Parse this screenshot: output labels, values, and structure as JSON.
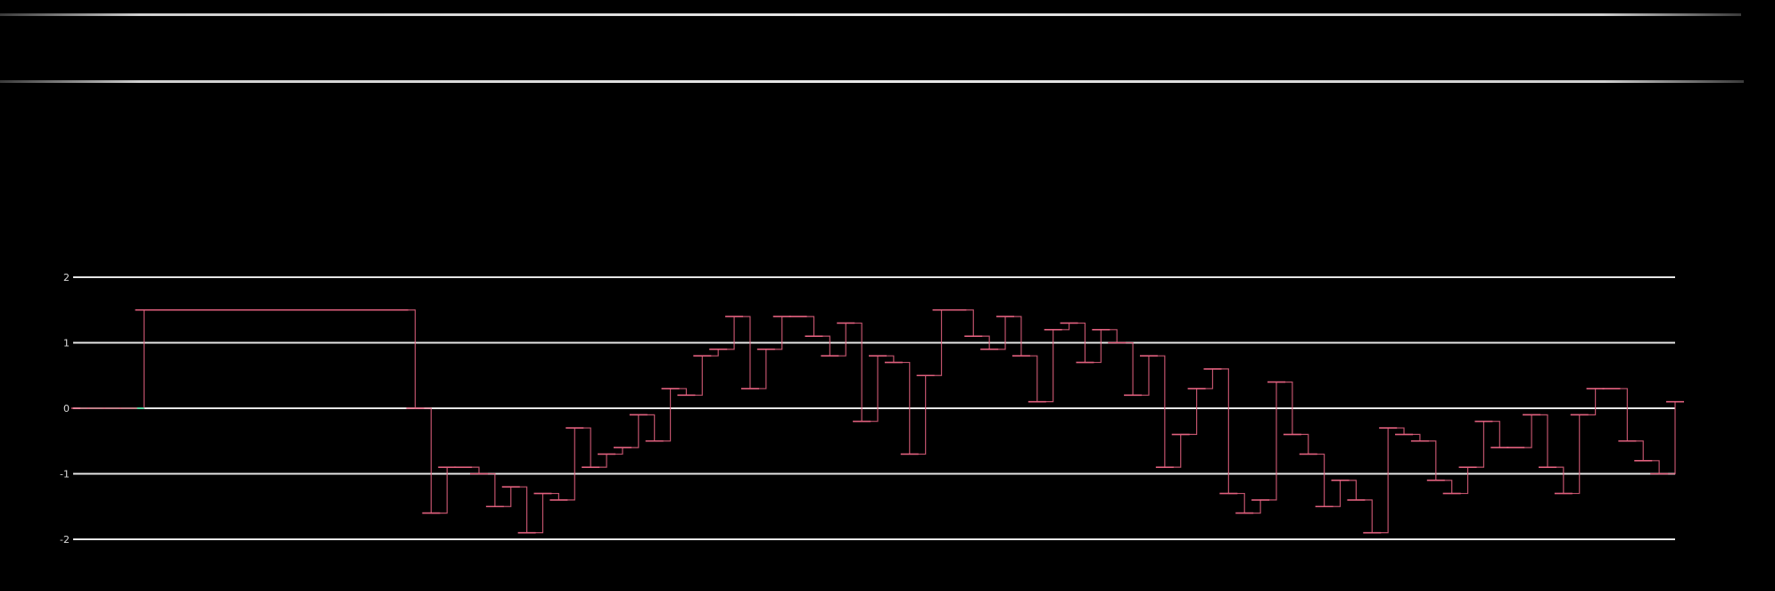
{
  "page": {
    "title": "",
    "chart_heading": ""
  },
  "colors": {
    "background": "#000000",
    "grid": "#e6e6e6",
    "series_main": "#e0607e",
    "series_accent": "#55d6a0"
  },
  "chart_data": {
    "type": "line",
    "title": "",
    "xlabel": "",
    "ylabel": "",
    "ylim": [
      -2,
      2
    ],
    "yticks": [
      2,
      1,
      0,
      -1,
      -2
    ],
    "grid": true,
    "legend": "none",
    "x": [
      0,
      4,
      8,
      12,
      16,
      20,
      24,
      28,
      32,
      36,
      40,
      44,
      48,
      52,
      56,
      60,
      64,
      68,
      72,
      76,
      80,
      84,
      88,
      92,
      96,
      100,
      104,
      108,
      112,
      116,
      120,
      124,
      128,
      132,
      136,
      140,
      144,
      148,
      152,
      156,
      160,
      164,
      168,
      172,
      176,
      180,
      184,
      188,
      192,
      196,
      200,
      204,
      208,
      212,
      216,
      220,
      224,
      228,
      232,
      236,
      240,
      244,
      248,
      252,
      256,
      260,
      264,
      268,
      272,
      276,
      280,
      284,
      288,
      292,
      296,
      300,
      304,
      308,
      312,
      316,
      320,
      324,
      328,
      332,
      336,
      340,
      344,
      348,
      352,
      356,
      360,
      364,
      368,
      372,
      376,
      380,
      384,
      388,
      392,
      396,
      400
    ],
    "series": [
      {
        "values": [
          0,
          0,
          0,
          0,
          1.5,
          1.5,
          1.5,
          1.5,
          1.5,
          1.5,
          1.5,
          1.5,
          1.5,
          1.5,
          1.5,
          1.5,
          1.5,
          1.5,
          1.5,
          1.5,
          1.5,
          0,
          -1.6,
          -0.9,
          -0.9,
          -1,
          -1.5,
          -1.2,
          -1.9,
          -1.3,
          -1.4,
          -0.3,
          -0.9,
          -0.7,
          -0.6,
          -0.1,
          -0.5,
          0.3,
          0.2,
          0.8,
          0.9,
          1.4,
          0.3,
          0.9,
          1.4,
          1.4,
          1.1,
          0.8,
          1.3,
          -0.2,
          0.8,
          0.7,
          -0.7,
          0.5,
          1.5,
          1.5,
          1.1,
          0.9,
          1.4,
          0.8,
          0.1,
          1.2,
          1.3,
          0.7,
          1.2,
          1,
          0.2,
          0.8,
          -0.9,
          -0.4,
          0.3,
          0.6,
          -1.3,
          -1.6,
          -1.4,
          0.4,
          -0.4,
          -0.7,
          -1.5,
          -1.1,
          -1.4,
          -1.9,
          -0.3,
          -0.4,
          -0.5,
          -1.1,
          -1.3,
          -0.9,
          -0.2,
          -0.6,
          -0.6,
          -0.1,
          -0.9,
          -1.3,
          -0.1,
          0.3,
          0.3,
          -0.5,
          -0.8,
          -1,
          0.1
        ],
        "accent_segment": [
          0,
          16
        ]
      }
    ]
  }
}
